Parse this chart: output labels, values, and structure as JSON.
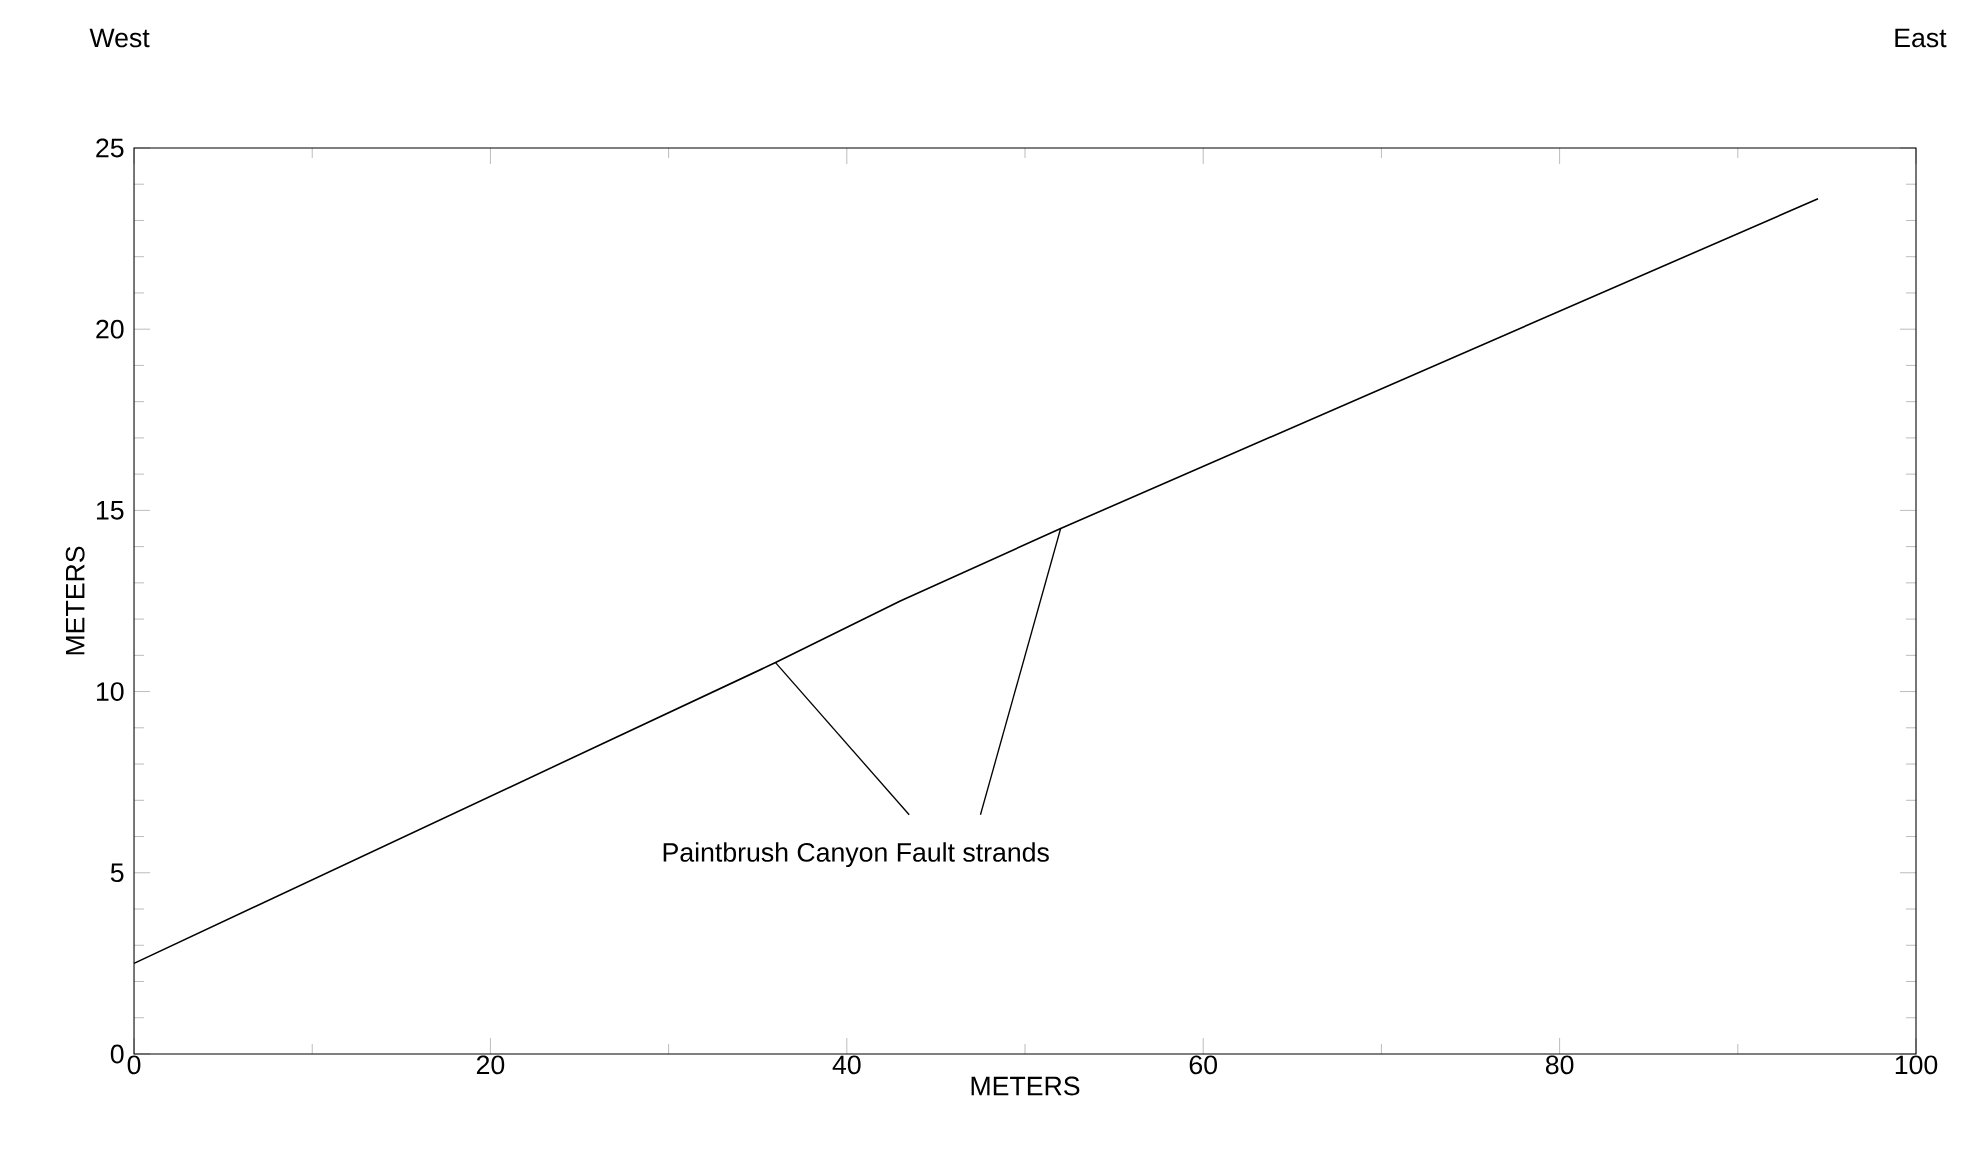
{
  "chart_data": {
    "type": "line",
    "xlabel": "METERS",
    "ylabel": "METERS",
    "annotations": [
      "West",
      "East",
      {
        "text": "Paintbrush Canyon Fault strands",
        "x": 36,
        "y": 10.8
      }
    ],
    "series": [
      {
        "x": [
          0,
          36,
          43,
          52,
          94.5
        ],
        "values": [
          2.5,
          10.8,
          12.5,
          14.5,
          23.6
        ],
        "color": "#000000"
      }
    ],
    "xlim": [
      0,
      100
    ],
    "ylim": [
      0,
      25
    ],
    "xticks": [
      0,
      20,
      40,
      60,
      80,
      100
    ],
    "yticks": [
      0,
      5,
      10,
      15,
      20,
      25
    ],
    "grid": false,
    "marker": "none",
    "line_style": "solid"
  }
}
